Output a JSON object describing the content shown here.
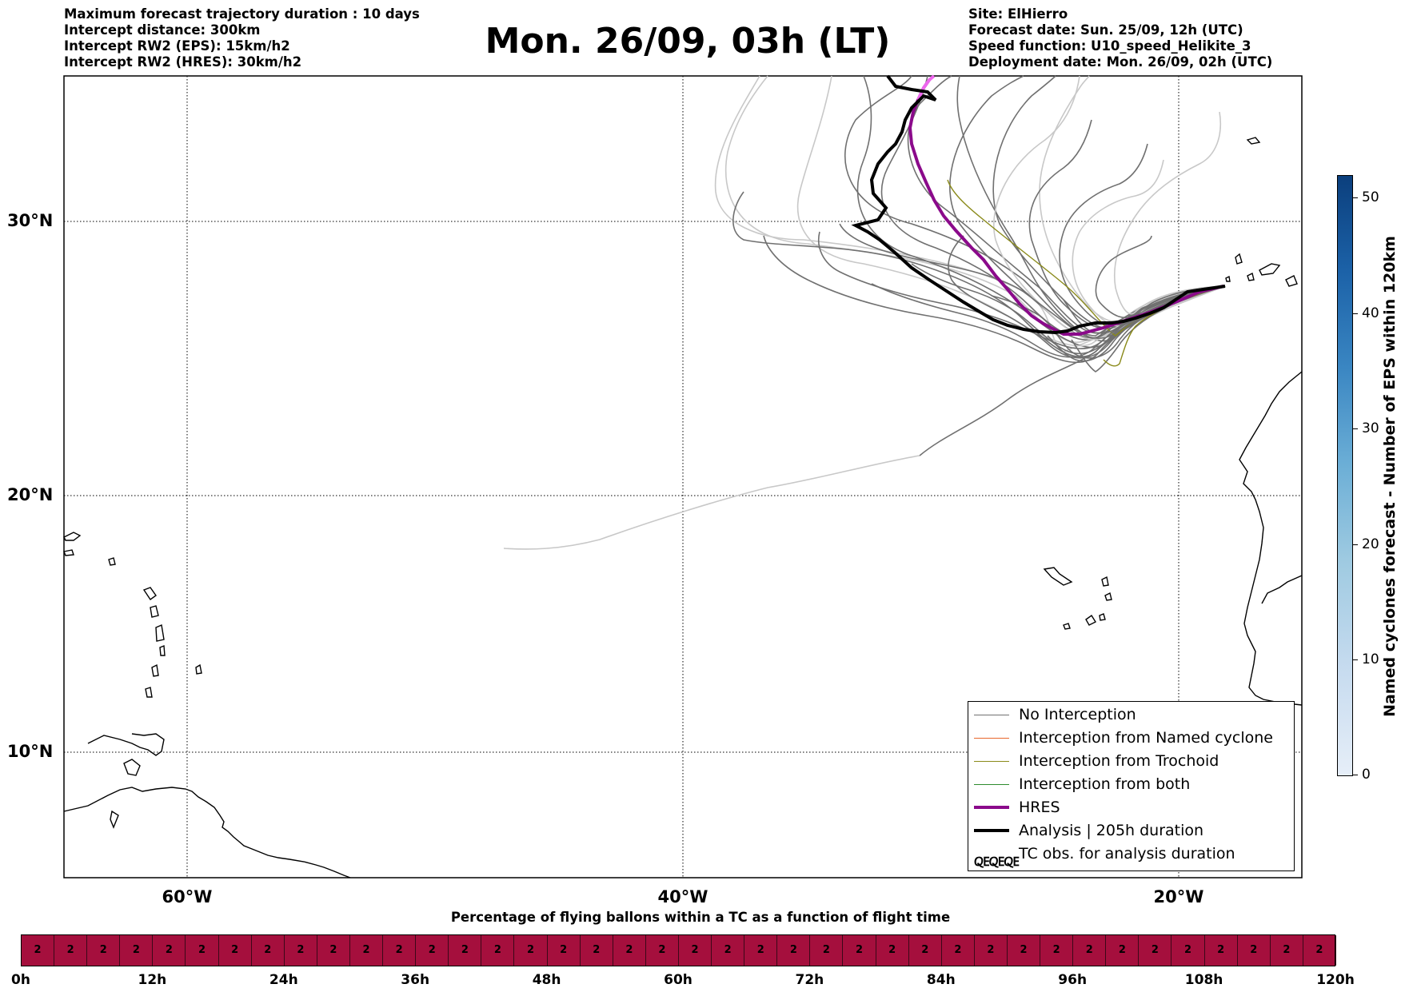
{
  "header": {
    "title": "Mon. 26/09, 03h (LT)",
    "left_info": [
      "Maximum forecast trajectory duration : 10 days",
      "Intercept distance: 300km",
      "Intercept RW2 (EPS):  15km/h2",
      "Intercept RW2 (HRES): 30km/h2"
    ],
    "right_info": [
      "Site: ElHierro",
      "Forecast date: Sun. 25/09, 12h (UTC)",
      "Speed function: U10_speed_Helikite_3",
      "Deployment date: Mon. 26/09, 02h (UTC)"
    ]
  },
  "map": {
    "lat_labels": [
      "30°N",
      "20°N",
      "10°N"
    ],
    "lon_labels": [
      "60°W",
      "40°W",
      "20°W"
    ],
    "colors": {
      "no_interception": "#707070",
      "no_interception_light": "#c8c8c8",
      "named_cyclone": "#e8672b",
      "trochoid": "#8a8a1a",
      "both": "#2e8b2e",
      "hres": "#8b0a8b",
      "hres_light": "#ee66ee",
      "analysis": "#000000",
      "coast": "#000000"
    }
  },
  "legend": {
    "items": [
      {
        "label": "No Interception",
        "style": "thin-gray"
      },
      {
        "label": "Interception from Named cyclone",
        "style": "thin-orange"
      },
      {
        "label": "Interception from Trochoid",
        "style": "thin-olive"
      },
      {
        "label": "Interception from both",
        "style": "thin-green"
      },
      {
        "label": "HRES",
        "style": "thick-purple"
      },
      {
        "label": "Analysis | 205h duration",
        "style": "thick-black"
      },
      {
        "label": "TC obs. for analysis duration",
        "style": "tc-symbols"
      }
    ]
  },
  "colorbar": {
    "title": "Named cyclones forecast - Number of EPS within 120km",
    "ticks": [
      "0",
      "10",
      "20",
      "30",
      "40",
      "50"
    ]
  },
  "bottom": {
    "title": "Percentage of flying ballons within a TC as a function of flight time",
    "cell_value": "2",
    "cell_count": 40,
    "bar_color": "#a50f3d",
    "ticks": [
      "0h",
      "12h",
      "24h",
      "36h",
      "48h",
      "60h",
      "72h",
      "84h",
      "96h",
      "108h",
      "120h"
    ]
  }
}
